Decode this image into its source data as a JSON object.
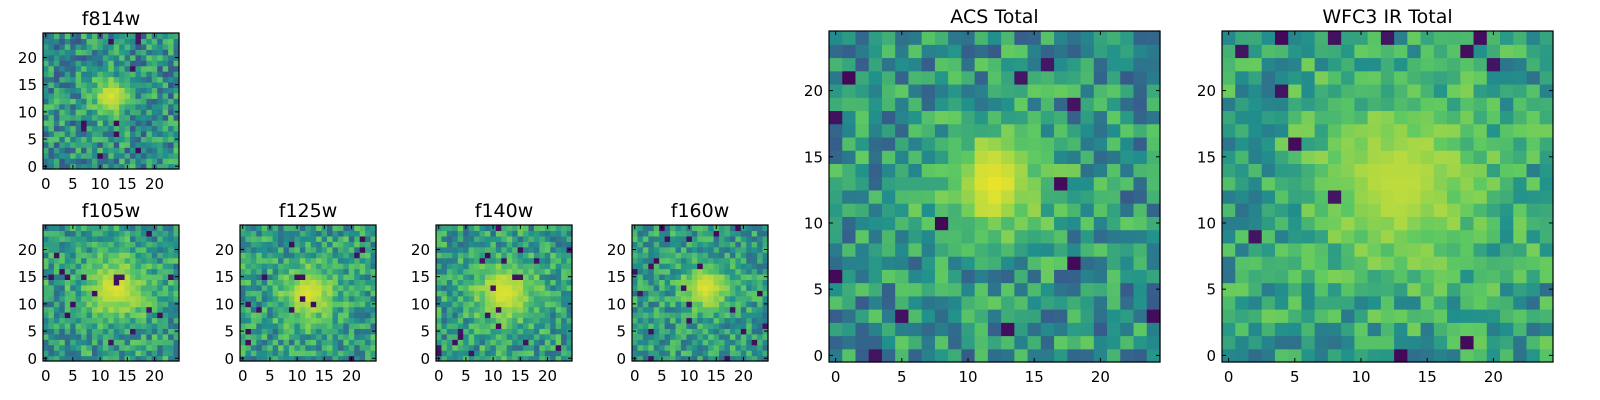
{
  "figure": {
    "colormap": "viridis",
    "colormap_stops": [
      "#440154",
      "#3b528b",
      "#21918c",
      "#5ec962",
      "#fde725"
    ]
  },
  "chart_data": [
    {
      "type": "heatmap",
      "title": "f814w",
      "grid_size": 25,
      "xticks": [
        0,
        5,
        10,
        15,
        20
      ],
      "yticks": [
        0,
        5,
        10,
        15,
        20
      ],
      "xlim": [
        -0.5,
        24.5
      ],
      "ylim": [
        -0.5,
        24.5
      ],
      "center": [
        12,
        13
      ],
      "peak": 0.95,
      "spread": 2.5,
      "background": 0.5,
      "noise": 0.25,
      "seed": 11
    },
    {
      "type": "heatmap",
      "title": "f105w",
      "grid_size": 25,
      "xticks": [
        0,
        5,
        10,
        15,
        20
      ],
      "yticks": [
        0,
        5,
        10,
        15,
        20
      ],
      "xlim": [
        -0.5,
        24.5
      ],
      "ylim": [
        -0.5,
        24.5
      ],
      "center": [
        13,
        13
      ],
      "peak": 0.95,
      "spread": 4,
      "background": 0.55,
      "noise": 0.22,
      "seed": 23
    },
    {
      "type": "heatmap",
      "title": "f125w",
      "grid_size": 25,
      "xticks": [
        0,
        5,
        10,
        15,
        20
      ],
      "yticks": [
        0,
        5,
        10,
        15,
        20
      ],
      "xlim": [
        -0.5,
        24.5
      ],
      "ylim": [
        -0.5,
        24.5
      ],
      "center": [
        12,
        12
      ],
      "peak": 0.95,
      "spread": 3.5,
      "background": 0.55,
      "noise": 0.22,
      "seed": 37
    },
    {
      "type": "heatmap",
      "title": "f140w",
      "grid_size": 25,
      "xticks": [
        0,
        5,
        10,
        15,
        20
      ],
      "yticks": [
        0,
        5,
        10,
        15,
        20
      ],
      "xlim": [
        -0.5,
        24.5
      ],
      "ylim": [
        -0.5,
        24.5
      ],
      "center": [
        12,
        12
      ],
      "peak": 0.95,
      "spread": 4,
      "background": 0.55,
      "noise": 0.22,
      "seed": 51
    },
    {
      "type": "heatmap",
      "title": "f160w",
      "grid_size": 25,
      "xticks": [
        0,
        5,
        10,
        15,
        20
      ],
      "yticks": [
        0,
        5,
        10,
        15,
        20
      ],
      "xlim": [
        -0.5,
        24.5
      ],
      "ylim": [
        -0.5,
        24.5
      ],
      "center": [
        13,
        13
      ],
      "peak": 0.95,
      "spread": 3,
      "background": 0.55,
      "noise": 0.2,
      "seed": 67
    },
    {
      "type": "heatmap",
      "title": "ACS Total",
      "grid_size": 25,
      "xticks": [
        0,
        5,
        10,
        15,
        20
      ],
      "yticks": [
        0,
        5,
        10,
        15,
        20
      ],
      "xlim": [
        -0.5,
        24.5
      ],
      "ylim": [
        -0.5,
        24.5
      ],
      "center": [
        12,
        13
      ],
      "peak": 0.97,
      "spread": 3,
      "background": 0.52,
      "noise": 0.24,
      "seed": 79
    },
    {
      "type": "heatmap",
      "title": "WFC3 IR Total",
      "grid_size": 25,
      "xticks": [
        0,
        5,
        10,
        15,
        20
      ],
      "yticks": [
        0,
        5,
        10,
        15,
        20
      ],
      "xlim": [
        -0.5,
        24.5
      ],
      "ylim": [
        -0.5,
        24.5
      ],
      "center": [
        13,
        13
      ],
      "peak": 0.9,
      "spread": 5,
      "background": 0.56,
      "noise": 0.22,
      "seed": 97
    }
  ]
}
